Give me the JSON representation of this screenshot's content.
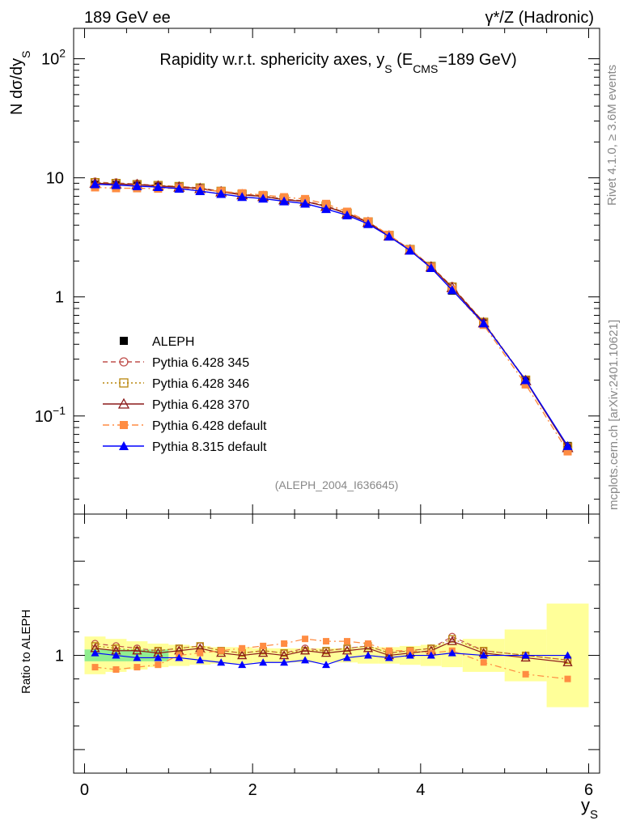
{
  "header": {
    "left": "189 GeV ee",
    "right": "γ*/Z (Hadronic)"
  },
  "side": {
    "rivet": "Rivet 4.1.0, ≥ 3.6M events",
    "mcplots": "mcplots.cern.ch [arXiv:2401.10621]"
  },
  "chart_data": {
    "type": "line",
    "title": "Rapidity w.r.t. sphericity axes, y_S (E_CMS=189 GeV)",
    "title_parts": {
      "main": "Rapidity w.r.t. sphericity axes, y",
      "sub1": "S",
      "mid": " (E",
      "sub2": "CMS",
      "end": "=189 GeV)"
    },
    "ylabel": "N  dσ/dy_S",
    "ylabel_parts": {
      "main": "N  dσ/dy",
      "sub": "S"
    },
    "xlabel": "y_S",
    "xlabel_parts": {
      "main": "y",
      "sub": "S"
    },
    "ratio_ylabel": "Ratio to ALEPH",
    "analysis_id": "(ALEPH_2004_I636645)",
    "xlim": [
      -0.13,
      6.13
    ],
    "ylim": [
      0.015,
      180
    ],
    "yscale": "log",
    "ratio_ylim": [
      0.5,
      1.6
    ],
    "x_ticks": [
      {
        "v": 0,
        "label": "0"
      },
      {
        "v": 2,
        "label": "2"
      },
      {
        "v": 4,
        "label": "4"
      },
      {
        "v": 6,
        "label": "6"
      }
    ],
    "y_ticks": [
      {
        "v": 0.1,
        "label": "10",
        "exp": "−1"
      },
      {
        "v": 1,
        "label": "1",
        "exp": ""
      },
      {
        "v": 10,
        "label": "10",
        "exp": ""
      },
      {
        "v": 100,
        "label": "10",
        "exp": "2"
      }
    ],
    "ratio_ticks": [
      {
        "v": 1,
        "label": "1"
      }
    ],
    "x": [
      0.125,
      0.375,
      0.625,
      0.875,
      1.125,
      1.375,
      1.625,
      1.875,
      2.125,
      2.375,
      2.625,
      2.875,
      3.125,
      3.375,
      3.625,
      3.875,
      4.125,
      4.375,
      4.75,
      5.25,
      5.75
    ],
    "bin_edges": [
      0,
      0.25,
      0.5,
      0.75,
      1,
      1.25,
      1.5,
      1.75,
      2,
      2.25,
      2.5,
      2.75,
      3,
      3.25,
      3.5,
      3.75,
      4,
      4.25,
      4.5,
      5,
      5.5,
      6
    ],
    "data_values": [
      8.75,
      8.7,
      8.6,
      8.45,
      8.2,
      7.9,
      7.55,
      7.2,
      6.9,
      6.55,
      6.2,
      5.7,
      4.9,
      4.1,
      3.25,
      2.45,
      1.75,
      1.13,
      0.6,
      0.2,
      0.056
    ],
    "band_halfwidth": [
      0.08,
      0.07,
      0.06,
      0.05,
      0.045,
      0.04,
      0.035,
      0.035,
      0.03,
      0.03,
      0.03,
      0.03,
      0.03,
      0.035,
      0.035,
      0.04,
      0.045,
      0.05,
      0.07,
      0.11,
      0.22
    ],
    "stat_band": {
      "x_range": [
        0,
        1
      ],
      "halfwidth": 0.025,
      "color": "#90ee90"
    },
    "series": [
      {
        "name": "ALEPH",
        "color": "#000000",
        "marker": "square",
        "line": "none",
        "ratio": [
          1,
          1,
          1,
          1,
          1,
          1,
          1,
          1,
          1,
          1,
          1,
          1,
          1,
          1,
          1,
          1,
          1,
          1,
          1,
          1,
          1
        ]
      },
      {
        "name": "Pythia 6.428 345",
        "color": "#c0504d",
        "marker": "circle-open",
        "line": "dashed",
        "ratio": [
          1.05,
          1.04,
          1.03,
          1.02,
          1.03,
          1.04,
          1.02,
          1.01,
          1.02,
          1.01,
          1.03,
          1.02,
          1.03,
          1.04,
          1.01,
          1.02,
          1.03,
          1.08,
          1.02,
          1.0,
          0.98
        ]
      },
      {
        "name": "Pythia 6.428 346",
        "color": "#b8860b",
        "marker": "square-open",
        "line": "dotted",
        "ratio": [
          1.04,
          1.03,
          1.02,
          1.02,
          1.03,
          1.04,
          1.02,
          1.01,
          1.02,
          1.01,
          1.02,
          1.02,
          1.03,
          1.04,
          1.01,
          1.02,
          1.03,
          1.07,
          1.02,
          1.0,
          0.98
        ]
      },
      {
        "name": "Pythia 6.428 370",
        "color": "#8b1a1a",
        "marker": "triangle-open",
        "line": "solid",
        "ratio": [
          1.03,
          1.02,
          1.02,
          1.01,
          1.02,
          1.03,
          1.01,
          1.0,
          1.01,
          1.0,
          1.02,
          1.01,
          1.02,
          1.03,
          1.0,
          1.01,
          1.02,
          1.06,
          1.01,
          0.99,
          0.97
        ]
      },
      {
        "name": "Pythia 6.428 default",
        "color": "#ff8c42",
        "marker": "square-filled",
        "line": "dashdot",
        "ratio": [
          0.95,
          0.94,
          0.95,
          0.96,
          1.0,
          1.01,
          1.02,
          1.03,
          1.04,
          1.05,
          1.07,
          1.06,
          1.06,
          1.05,
          1.02,
          1.02,
          1.01,
          1.02,
          0.97,
          0.92,
          0.9
        ]
      },
      {
        "name": "Pythia 8.315 default",
        "color": "#0000ff",
        "marker": "triangle-filled",
        "line": "solid",
        "ratio": [
          1.01,
          1.0,
          0.99,
          0.99,
          0.99,
          0.98,
          0.97,
          0.96,
          0.97,
          0.97,
          0.98,
          0.96,
          0.99,
          1.0,
          0.99,
          1.0,
          1.0,
          1.01,
          1.0,
          1.0,
          1.0
        ]
      }
    ]
  }
}
